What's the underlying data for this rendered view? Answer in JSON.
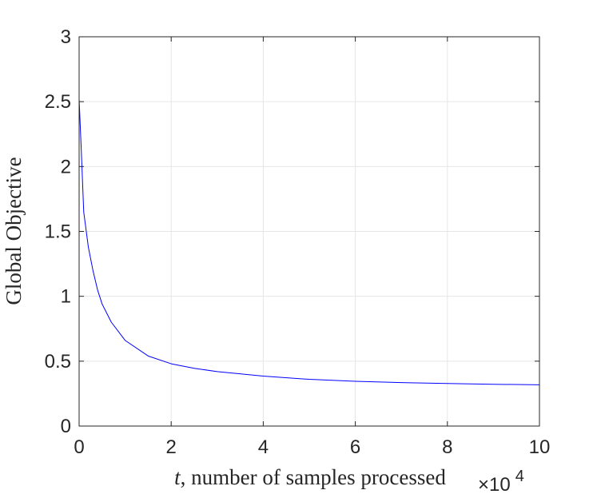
{
  "chart_data": {
    "type": "line",
    "title": "",
    "xlabel_var": "t",
    "xlabel_rest": ", number of samples processed",
    "ylabel": "Global Objective",
    "x_multiplier_base": "×10",
    "x_multiplier_exp": "4",
    "xlim": [
      0,
      10
    ],
    "ylim": [
      0,
      3
    ],
    "xticks": [
      0,
      2,
      4,
      6,
      8,
      10
    ],
    "yticks": [
      0,
      0.5,
      1,
      1.5,
      2,
      2.5,
      3
    ],
    "xtick_labels": [
      "0",
      "2",
      "4",
      "6",
      "8",
      "10"
    ],
    "ytick_labels": [
      "0",
      "0.5",
      "1",
      "1.5",
      "2",
      "2.5",
      "3"
    ],
    "grid": true,
    "series": [
      {
        "color": "#0000ff",
        "x": [
          0,
          0.05,
          0.1,
          0.2,
          0.3,
          0.4,
          0.5,
          0.7,
          1.0,
          1.5,
          2,
          2.5,
          3,
          4,
          5,
          6,
          7,
          8,
          9,
          10
        ],
        "y": [
          2.52,
          2.1,
          1.65,
          1.38,
          1.2,
          1.05,
          0.94,
          0.8,
          0.66,
          0.54,
          0.48,
          0.445,
          0.42,
          0.385,
          0.36,
          0.345,
          0.335,
          0.328,
          0.322,
          0.318
        ]
      }
    ]
  }
}
